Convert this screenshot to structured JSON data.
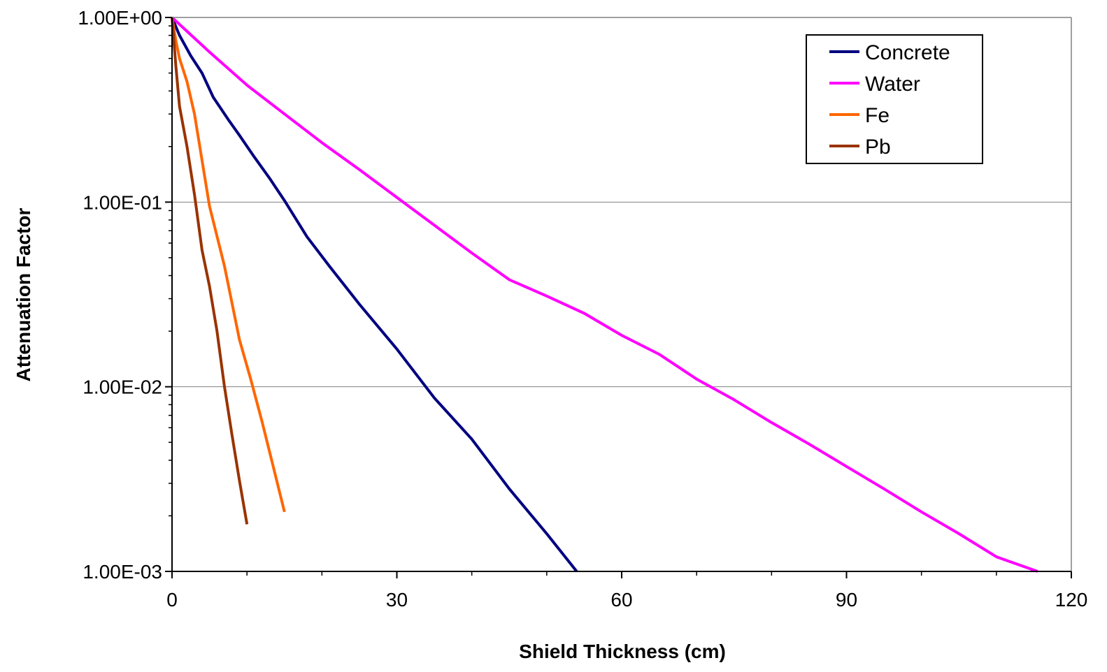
{
  "chart_data": {
    "type": "line",
    "title": "",
    "xlabel": "Shield Thickness (cm)",
    "ylabel": "Attenuation Factor",
    "xlim": [
      0,
      120
    ],
    "ylim": [
      0.001,
      1
    ],
    "yscale": "log",
    "x_ticks": [
      "0",
      "30",
      "60",
      "90",
      "120"
    ],
    "y_ticks": [
      "1.00E+00",
      "1.00E-01",
      "1.00E-02",
      "1.00E-03"
    ],
    "grid": "horizontal major lines",
    "legend_position": "top-right",
    "series": [
      {
        "name": "Concrete",
        "color": "#000080",
        "points": [
          [
            0,
            1.0
          ],
          [
            1,
            0.8
          ],
          [
            2.5,
            0.62
          ],
          [
            4,
            0.5
          ],
          [
            5.5,
            0.37
          ],
          [
            7.5,
            0.28
          ],
          [
            9,
            0.23
          ],
          [
            11,
            0.175
          ],
          [
            13,
            0.135
          ],
          [
            15,
            0.102
          ],
          [
            18,
            0.065
          ],
          [
            21,
            0.045
          ],
          [
            25,
            0.028
          ],
          [
            30,
            0.016
          ],
          [
            35,
            0.0087
          ],
          [
            40,
            0.0052
          ],
          [
            45,
            0.0028
          ],
          [
            50,
            0.0016
          ],
          [
            54,
            0.001
          ]
        ]
      },
      {
        "name": "Water",
        "color": "#FF00FF",
        "points": [
          [
            0,
            1.0
          ],
          [
            5,
            0.65
          ],
          [
            10,
            0.43
          ],
          [
            15,
            0.3
          ],
          [
            20,
            0.21
          ],
          [
            25,
            0.15
          ],
          [
            30,
            0.106
          ],
          [
            35,
            0.075
          ],
          [
            40,
            0.053
          ],
          [
            45,
            0.038
          ],
          [
            50,
            0.031
          ],
          [
            55,
            0.025
          ],
          [
            60,
            0.019
          ],
          [
            65,
            0.015
          ],
          [
            70,
            0.011
          ],
          [
            75,
            0.0085
          ],
          [
            80,
            0.0064
          ],
          [
            85,
            0.0049
          ],
          [
            90,
            0.0037
          ],
          [
            95,
            0.0028
          ],
          [
            100,
            0.0021
          ],
          [
            105,
            0.0016
          ],
          [
            110,
            0.0012
          ],
          [
            115.5,
            0.001
          ]
        ]
      },
      {
        "name": "Fe",
        "color": "#FF6600",
        "points": [
          [
            0,
            1.0
          ],
          [
            0.5,
            0.75
          ],
          [
            1,
            0.6
          ],
          [
            2,
            0.45
          ],
          [
            3,
            0.3
          ],
          [
            5,
            0.095
          ],
          [
            7,
            0.045
          ],
          [
            9,
            0.018
          ],
          [
            10.5,
            0.011
          ],
          [
            12,
            0.0065
          ],
          [
            13.5,
            0.0037
          ],
          [
            15,
            0.0021
          ]
        ]
      },
      {
        "name": "Pb",
        "color": "#993300",
        "points": [
          [
            0,
            1.0
          ],
          [
            0.5,
            0.55
          ],
          [
            1,
            0.33
          ],
          [
            2,
            0.2
          ],
          [
            3,
            0.11
          ],
          [
            4,
            0.055
          ],
          [
            5,
            0.035
          ],
          [
            6,
            0.02
          ],
          [
            7,
            0.01
          ],
          [
            8,
            0.0055
          ],
          [
            9,
            0.0031
          ],
          [
            10,
            0.0018
          ]
        ]
      }
    ]
  }
}
